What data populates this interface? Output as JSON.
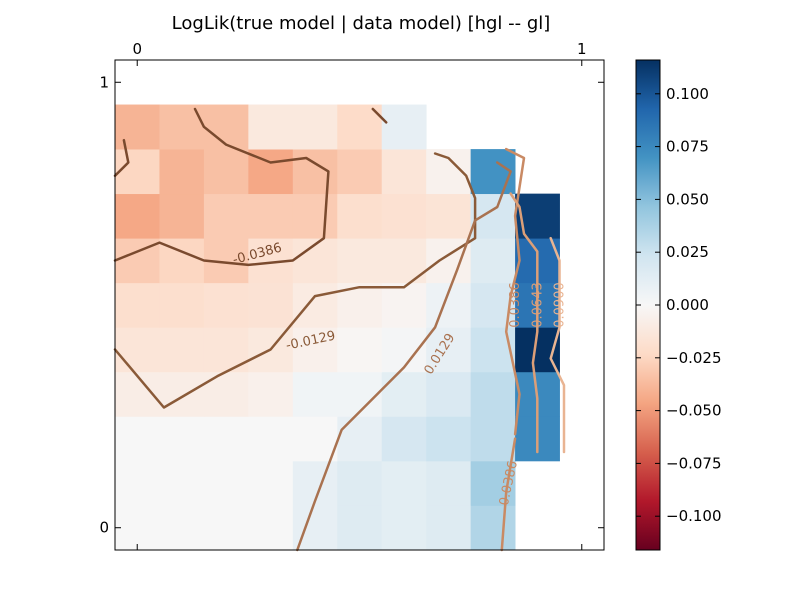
{
  "chart_data": {
    "type": "heatmap",
    "title": "LogLik(true model | data model) [hgl -- gl]",
    "xlabel": "",
    "ylabel": "",
    "x_ticks": [
      0,
      1
    ],
    "x_tick_labels": [
      "0",
      "1"
    ],
    "y_ticks": [
      0,
      1
    ],
    "y_tick_labels": [
      "0",
      "1"
    ],
    "xlim": [
      -0.05,
      1.05
    ],
    "ylim": [
      -0.05,
      1.05
    ],
    "grid": false,
    "colormap": "RdBu",
    "clim": [
      -0.116,
      0.116
    ],
    "colorbar": {
      "ticks": [
        0.1,
        0.075,
        0.05,
        0.025,
        0.0,
        -0.025,
        -0.05,
        -0.075,
        -0.1
      ],
      "tick_labels": [
        "0.100",
        "0.075",
        "0.050",
        "0.025",
        "0.000",
        "−0.025",
        "−0.050",
        "−0.075",
        "−0.100"
      ]
    },
    "cell_size": 0.1,
    "cell_origin": [
      -0.05,
      -0.05
    ],
    "cells": [
      [
        0.0,
        0.0,
        0.0,
        0.0,
        0.01,
        0.015,
        0.012,
        0.015,
        0.035,
        null,
        null
      ],
      [
        0.0,
        0.0,
        0.0,
        0.0,
        0.01,
        0.015,
        0.012,
        0.015,
        0.04,
        null,
        null
      ],
      [
        0.0,
        0.0,
        0.0,
        0.0,
        0.0,
        0.01,
        0.02,
        0.025,
        0.03,
        0.075,
        null
      ],
      [
        -0.008,
        -0.008,
        -0.008,
        -0.006,
        0.004,
        0.004,
        0.012,
        0.018,
        0.03,
        0.075,
        null
      ],
      [
        -0.015,
        -0.015,
        -0.015,
        -0.012,
        -0.006,
        -0.002,
        0.002,
        0.01,
        0.025,
        0.116,
        null
      ],
      [
        -0.02,
        -0.02,
        -0.018,
        -0.017,
        -0.01,
        -0.006,
        -0.003,
        0.006,
        0.02,
        0.085,
        null
      ],
      [
        -0.03,
        -0.025,
        -0.03,
        -0.018,
        -0.015,
        -0.012,
        -0.012,
        -0.005,
        0.015,
        0.09,
        null
      ],
      [
        -0.045,
        -0.04,
        -0.03,
        -0.03,
        -0.03,
        -0.02,
        -0.018,
        -0.016,
        0.02,
        0.11,
        null
      ],
      [
        -0.025,
        -0.04,
        -0.035,
        -0.045,
        -0.035,
        -0.03,
        -0.015,
        -0.005,
        0.07,
        null,
        null
      ],
      [
        -0.04,
        -0.035,
        -0.035,
        -0.012,
        -0.012,
        -0.022,
        0.01,
        null,
        null,
        null,
        null
      ],
      [
        null,
        null,
        null,
        null,
        null,
        null,
        null,
        null,
        null,
        null,
        null
      ]
    ],
    "contours": [
      {
        "level": -0.0386,
        "label": "-0.0386",
        "color": "#7a4a2e",
        "segments": [
          [
            [
              -0.05,
              0.79
            ],
            [
              -0.02,
              0.82
            ],
            [
              -0.03,
              0.87
            ]
          ],
          [
            [
              -0.05,
              0.6
            ],
            [
              0.05,
              0.64
            ],
            [
              0.15,
              0.6
            ],
            [
              0.25,
              0.59
            ],
            [
              0.35,
              0.6
            ],
            [
              0.42,
              0.65
            ],
            [
              0.43,
              0.8
            ],
            [
              0.38,
              0.83
            ],
            [
              0.3,
              0.82
            ],
            [
              0.2,
              0.86
            ],
            [
              0.15,
              0.9
            ],
            [
              0.13,
              0.94
            ]
          ],
          [
            [
              0.53,
              0.94
            ],
            [
              0.56,
              0.91
            ]
          ]
        ],
        "label_at": [
          0.27,
          0.615
        ],
        "label_angle": -15
      },
      {
        "level": -0.0129,
        "label": "-0.0129",
        "color": "#8a5a38",
        "segments": [
          [
            [
              -0.05,
              0.4
            ],
            [
              0.06,
              0.27
            ],
            [
              0.18,
              0.34
            ],
            [
              0.3,
              0.4
            ],
            [
              0.4,
              0.52
            ],
            [
              0.5,
              0.54
            ],
            [
              0.6,
              0.54
            ],
            [
              0.68,
              0.6
            ],
            [
              0.76,
              0.65
            ],
            [
              0.76,
              0.74
            ],
            [
              0.74,
              0.79
            ],
            [
              0.7,
              0.83
            ],
            [
              0.67,
              0.84
            ]
          ]
        ],
        "label_at": [
          0.39,
          0.42
        ],
        "label_angle": -12
      },
      {
        "level": 0.0129,
        "label": "0.0129",
        "color": "#a97250",
        "segments": [
          [
            [
              0.36,
              -0.05
            ],
            [
              0.4,
              0.06
            ],
            [
              0.46,
              0.22
            ],
            [
              0.54,
              0.3
            ],
            [
              0.6,
              0.36
            ],
            [
              0.67,
              0.45
            ],
            [
              0.72,
              0.58
            ],
            [
              0.76,
              0.69
            ],
            [
              0.81,
              0.72
            ],
            [
              0.84,
              0.8
            ],
            [
              0.81,
              0.82
            ]
          ]
        ],
        "label_at": [
          0.68,
          0.39
        ],
        "label_angle": -58
      },
      {
        "level": 0.0386,
        "label": "0.0386",
        "color": "#c98a64",
        "segments": [
          [
            [
              0.82,
              -0.05
            ],
            [
              0.83,
              0.08
            ],
            [
              0.85,
              0.2
            ]
          ],
          [
            [
              0.85,
              0.21
            ],
            [
              0.86,
              0.3
            ],
            [
              0.83,
              0.44
            ],
            [
              0.84,
              0.52
            ],
            [
              0.86,
              0.6
            ],
            [
              0.85,
              0.7
            ],
            [
              0.87,
              0.83
            ],
            [
              0.83,
              0.85
            ]
          ]
        ],
        "label_at": [
          0.835,
          0.1
        ],
        "label_angle": -78,
        "label_at2": [
          0.85,
          0.5
        ],
        "label_angle2": -90
      },
      {
        "level": 0.0643,
        "label": "0.0643",
        "color": "#dc9f78",
        "segments": [
          [
            [
              0.9,
              0.17
            ],
            [
              0.9,
              0.29
            ],
            [
              0.89,
              0.37
            ],
            [
              0.9,
              0.44
            ],
            [
              0.9,
              0.52
            ],
            [
              0.9,
              0.62
            ],
            [
              0.87,
              0.66
            ],
            [
              0.86,
              0.72
            ],
            [
              0.84,
              0.75
            ]
          ]
        ],
        "label_at": [
          0.9,
          0.5
        ],
        "label_angle": -90
      },
      {
        "level": 0.09,
        "label": "0.0900",
        "color": "#e9b492",
        "segments": [
          [
            [
              0.96,
              0.17
            ],
            [
              0.96,
              0.32
            ],
            [
              0.93,
              0.38
            ],
            [
              0.95,
              0.45
            ],
            [
              0.95,
              0.53
            ],
            [
              0.95,
              0.6
            ],
            [
              0.93,
              0.65
            ]
          ]
        ],
        "label_at": [
          0.95,
          0.5
        ],
        "label_angle": -90
      }
    ]
  }
}
